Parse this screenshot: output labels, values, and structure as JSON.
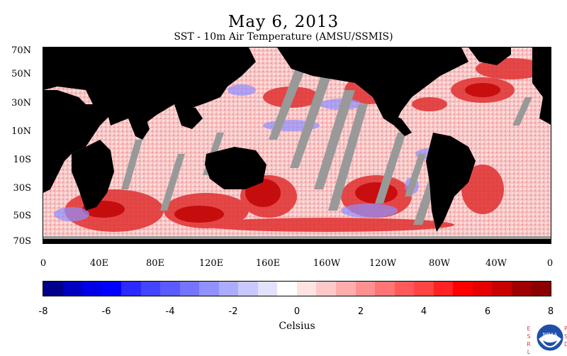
{
  "title": "May 6, 2013",
  "subtitle": "SST - 10m Air Temperature (AMSU/SSMIS)",
  "latitude_labels": [
    "70N",
    "50N",
    "30N",
    "10N",
    "10S",
    "30S",
    "50S",
    "70S"
  ],
  "longitude_labels": [
    "0",
    "40E",
    "80E",
    "120E",
    "160E",
    "160W",
    "120W",
    "80W",
    "40W",
    "0"
  ],
  "colorbar": {
    "unit": "Celsius",
    "tick_labels": [
      "-8",
      "-6",
      "-4",
      "-2",
      "0",
      "2",
      "4",
      "6",
      "8"
    ],
    "colors": [
      "#00008b",
      "#0000c0",
      "#0000e6",
      "#0000ff",
      "#2a2aff",
      "#4444ff",
      "#5a5aff",
      "#7474ff",
      "#9090ff",
      "#acacff",
      "#c8c8ff",
      "#e2e2ff",
      "#ffffff",
      "#ffe2e2",
      "#ffc8c8",
      "#ffacac",
      "#ff9090",
      "#ff7474",
      "#ff5a5a",
      "#ff4444",
      "#ff2222",
      "#ff0000",
      "#e60000",
      "#c80000",
      "#a00000",
      "#8b0000"
    ]
  },
  "colors": {
    "land": "#000000",
    "missing": "#999999"
  },
  "logo": {
    "left_letters": "ESRL",
    "right_letters": "PSD",
    "badge_text": "NOAA"
  }
}
